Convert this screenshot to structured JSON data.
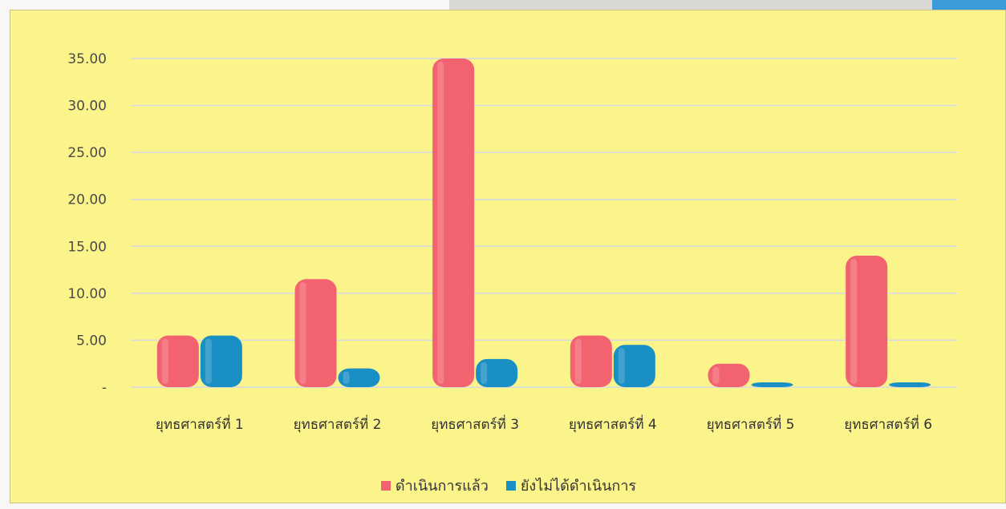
{
  "colors": {
    "background": "#fbf48a",
    "series_1": "#f2636f",
    "series_2": "#1a8fc4",
    "grid": "#d6d9e8"
  },
  "chart_data": {
    "type": "bar",
    "title": "",
    "xlabel": "",
    "ylabel": "",
    "ylim": [
      0,
      35
    ],
    "y_ticks": [
      "-",
      "5.00",
      "10.00",
      "15.00",
      "20.00",
      "25.00",
      "30.00",
      "35.00"
    ],
    "grid": true,
    "legend_position": "bottom",
    "categories": [
      "ยุทธศาสตร์ที่ 1",
      "ยุทธศาสตร์ที่ 2",
      "ยุทธศาสตร์ที่ 3",
      "ยุทธศาสตร์ที่ 4",
      "ยุทธศาสตร์ที่ 5",
      "ยุทธศาสตร์ที่ 6"
    ],
    "series": [
      {
        "name": "ดำเนินการแล้ว",
        "values": [
          5.5,
          11.5,
          35.0,
          5.5,
          2.5,
          14.0
        ]
      },
      {
        "name": "ยังไม่ได้ดำเนินการ",
        "values": [
          5.5,
          2.0,
          3.0,
          4.5,
          0.3,
          0.5
        ]
      }
    ]
  }
}
